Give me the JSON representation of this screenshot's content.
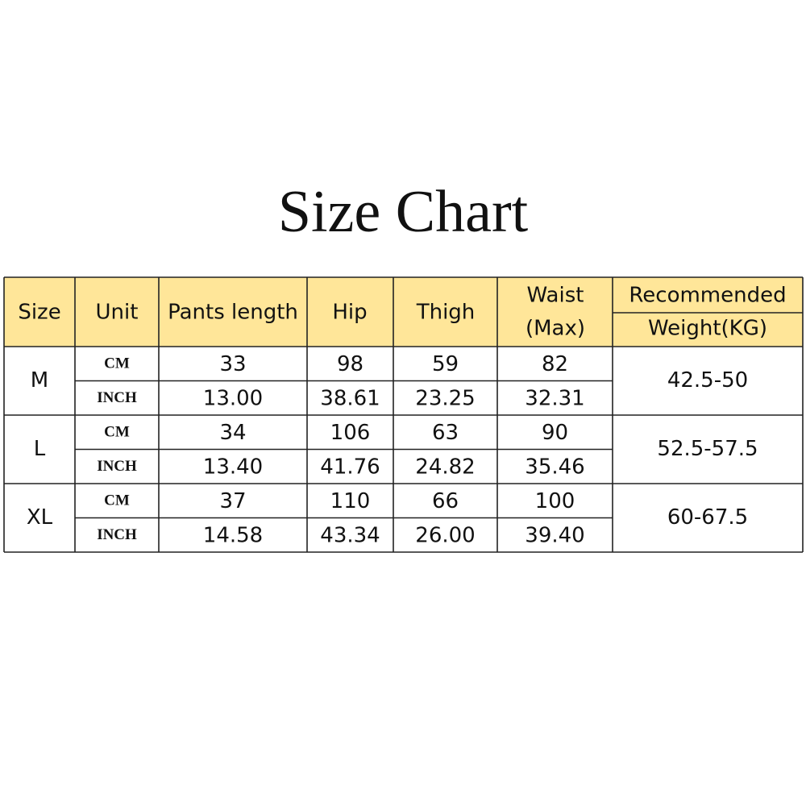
{
  "title": "Size Chart",
  "table": {
    "header": {
      "size": "Size",
      "unit": "Unit",
      "pants_length": "Pants length",
      "hip": "Hip",
      "thigh": "Thigh",
      "waist": [
        "Waist",
        "(Max)"
      ],
      "weight": [
        "Recommended",
        "Weight(KG)"
      ]
    },
    "rows": [
      {
        "size": "M",
        "weight": "42.5-50",
        "units": [
          [
            "CM",
            "33",
            "98",
            "59",
            "82"
          ],
          [
            "INCH",
            "13.00",
            "38.61",
            "23.25",
            "32.31"
          ]
        ]
      },
      {
        "size": "L",
        "weight": "52.5-57.5",
        "units": [
          [
            "CM",
            "34",
            "106",
            "63",
            "90"
          ],
          [
            "INCH",
            "13.40",
            "41.76",
            "24.82",
            "35.46"
          ]
        ]
      },
      {
        "size": "XL",
        "weight": "60-67.5",
        "units": [
          [
            "CM",
            "37",
            "110",
            "66",
            "100"
          ],
          [
            "INCH",
            "14.58",
            "43.34",
            "26.00",
            "39.40"
          ]
        ]
      }
    ]
  }
}
